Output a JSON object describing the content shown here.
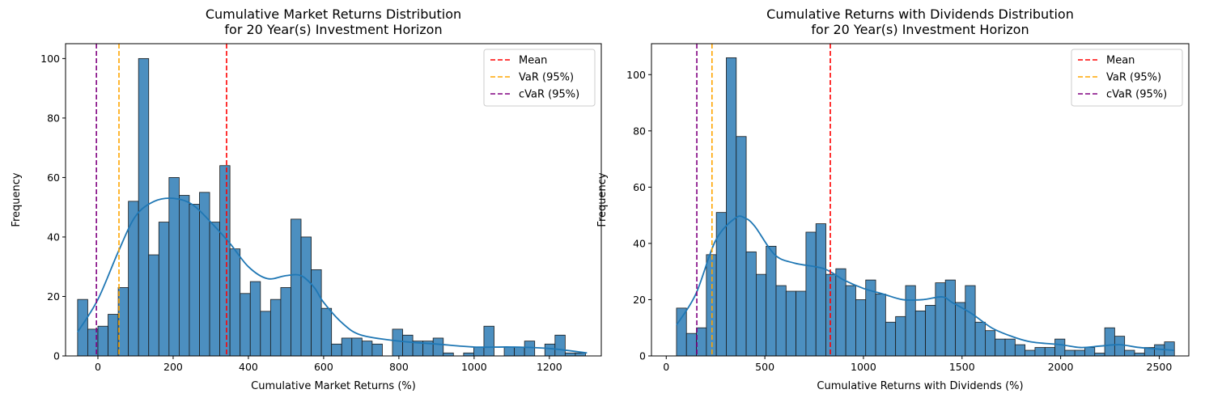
{
  "chart_data": [
    {
      "type": "bar",
      "subtype": "histogram-with-kde",
      "title": "Cumulative Market Returns Distribution\nfor 20 Year(s) Investment Horizon",
      "xlabel": "Cumulative Market Returns (%)",
      "ylabel": "Frequency",
      "xlim": [
        -86,
        1338
      ],
      "ylim": [
        0,
        105
      ],
      "xticks": [
        0,
        200,
        400,
        600,
        800,
        1000,
        1200
      ],
      "yticks": [
        0,
        20,
        40,
        60,
        80,
        100
      ],
      "bin_start": -54,
      "bin_width": 27,
      "values": [
        19,
        9,
        10,
        14,
        23,
        52,
        100,
        34,
        45,
        60,
        54,
        51,
        55,
        45,
        64,
        36,
        21,
        25,
        15,
        19,
        23,
        46,
        40,
        29,
        16,
        4,
        6,
        6,
        5,
        4,
        0,
        9,
        7,
        5,
        5,
        6,
        1,
        0,
        1,
        3,
        10,
        0,
        3,
        3,
        5,
        0,
        4,
        7,
        1,
        1
      ],
      "kde": [
        [
          -54,
          8
        ],
        [
          0,
          19
        ],
        [
          54,
          35
        ],
        [
          100,
          47
        ],
        [
          150,
          52
        ],
        [
          200,
          53
        ],
        [
          250,
          51
        ],
        [
          300,
          45
        ],
        [
          350,
          38
        ],
        [
          400,
          30
        ],
        [
          450,
          26
        ],
        [
          500,
          27
        ],
        [
          540,
          27
        ],
        [
          575,
          23
        ],
        [
          600,
          18
        ],
        [
          650,
          11
        ],
        [
          700,
          7
        ],
        [
          800,
          5
        ],
        [
          900,
          4
        ],
        [
          1000,
          3
        ],
        [
          1100,
          3
        ],
        [
          1200,
          2.5
        ],
        [
          1300,
          1
        ]
      ],
      "lines": [
        {
          "name": "Mean",
          "x": 342,
          "color": "#ff0000"
        },
        {
          "name": "VaR (95%)",
          "x": 56,
          "color": "#ffa500"
        },
        {
          "name": "cVaR (95%)",
          "x": -4,
          "color": "#800080"
        }
      ],
      "legend": "top-right",
      "bar_color": "#4c8fc0",
      "kde_color": "#1f77b4"
    },
    {
      "type": "bar",
      "subtype": "histogram-with-kde",
      "title": "Cumulative Returns with Dividends Distribution\nfor 20 Year(s) Investment Horizon",
      "xlabel": "Cumulative Returns with Dividends (%)",
      "ylabel": "Frequency",
      "xlim": [
        -75,
        2650
      ],
      "ylim": [
        0,
        111
      ],
      "xticks": [
        0,
        500,
        1000,
        1500,
        2000,
        2500
      ],
      "yticks": [
        0,
        20,
        40,
        60,
        80,
        100
      ],
      "bin_start": 52,
      "bin_width": 50.5,
      "values": [
        17,
        8,
        10,
        36,
        51,
        106,
        78,
        37,
        29,
        39,
        25,
        23,
        23,
        44,
        47,
        29,
        31,
        25,
        20,
        27,
        22,
        12,
        14,
        25,
        16,
        18,
        26,
        27,
        19,
        25,
        12,
        9,
        6,
        6,
        4,
        2,
        3,
        3,
        6,
        2,
        2,
        3,
        1,
        10,
        7,
        2,
        1,
        3,
        4,
        5
      ],
      "kde": [
        [
          52,
          11
        ],
        [
          150,
          22
        ],
        [
          250,
          41
        ],
        [
          350,
          49
        ],
        [
          400,
          49
        ],
        [
          450,
          46
        ],
        [
          550,
          36
        ],
        [
          650,
          33
        ],
        [
          800,
          31
        ],
        [
          900,
          27
        ],
        [
          1000,
          24
        ],
        [
          1100,
          22
        ],
        [
          1200,
          20
        ],
        [
          1300,
          20
        ],
        [
          1400,
          21
        ],
        [
          1450,
          19
        ],
        [
          1550,
          15
        ],
        [
          1650,
          10
        ],
        [
          1750,
          7
        ],
        [
          1850,
          5
        ],
        [
          2000,
          4
        ],
        [
          2100,
          3
        ],
        [
          2200,
          3.5
        ],
        [
          2300,
          4
        ],
        [
          2400,
          3
        ],
        [
          2575,
          2
        ]
      ],
      "lines": [
        {
          "name": "Mean",
          "x": 832,
          "color": "#ff0000"
        },
        {
          "name": "VaR (95%)",
          "x": 232,
          "color": "#ffa500"
        },
        {
          "name": "cVaR (95%)",
          "x": 155,
          "color": "#800080"
        }
      ],
      "legend": "top-right",
      "bar_color": "#4c8fc0",
      "kde_color": "#1f77b4"
    }
  ]
}
